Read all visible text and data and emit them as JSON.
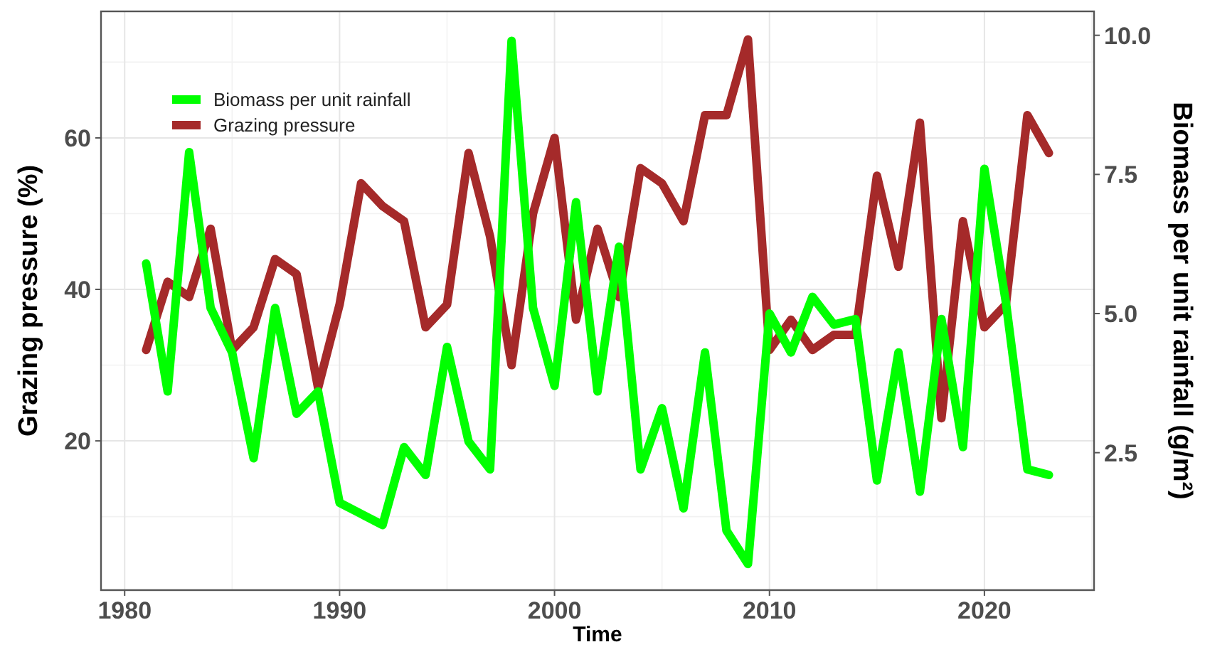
{
  "chart_data": {
    "type": "line",
    "xlabel": "Time",
    "ylabel": "Grazing pressure (%)",
    "y2label": "Biomass per unit rainfall (g/m²)",
    "x": [
      1981,
      1982,
      1983,
      1984,
      1985,
      1986,
      1987,
      1988,
      1989,
      1990,
      1991,
      1992,
      1993,
      1994,
      1995,
      1996,
      1997,
      1998,
      1999,
      2000,
      2001,
      2002,
      2003,
      2004,
      2005,
      2006,
      2007,
      2008,
      2009,
      2010,
      2011,
      2012,
      2013,
      2014,
      2015,
      2016,
      2017,
      2018,
      2019,
      2020,
      2021,
      2022,
      2023
    ],
    "series": [
      {
        "name": "Biomass per unit rainfall",
        "color": "#00ff00",
        "axis": "y2",
        "values": [
          5.9,
          3.6,
          7.9,
          5.1,
          4.3,
          2.4,
          5.1,
          3.2,
          3.6,
          1.6,
          1.4,
          1.2,
          2.6,
          2.1,
          4.4,
          2.7,
          2.2,
          9.9,
          5.1,
          3.7,
          7.0,
          3.6,
          6.2,
          2.2,
          3.3,
          1.5,
          4.3,
          1.1,
          0.5,
          5.0,
          4.3,
          5.3,
          4.8,
          4.9,
          2.0,
          4.3,
          1.8,
          4.9,
          2.6,
          7.6,
          5.2,
          2.2,
          2.1
        ]
      },
      {
        "name": "Grazing pressure",
        "color": "#a52a2a",
        "values": [
          32,
          41,
          39,
          48,
          32,
          35,
          44,
          42,
          27,
          38,
          54,
          51,
          49,
          35,
          38,
          58,
          47,
          30,
          50,
          60,
          36,
          48,
          39,
          56,
          54,
          49,
          63,
          63,
          73,
          32,
          36,
          32,
          34,
          34,
          55,
          43,
          62,
          23,
          49,
          35,
          38,
          63,
          58
        ]
      }
    ],
    "xlim": [
      1978.9,
      2025.1
    ],
    "xticks": [
      1980,
      1990,
      2000,
      2010,
      2020
    ],
    "ylim": [
      0.3,
      76.7
    ],
    "yticks": [
      20,
      40,
      60
    ],
    "y2lim": [
      0.03,
      10.43
    ],
    "y2ticks": [
      {
        "value": 2.5,
        "label": "2.5"
      },
      {
        "value": 5,
        "label": "5.0"
      },
      {
        "value": 7.5,
        "label": "7.5"
      },
      {
        "value": 10,
        "label": "10.0"
      }
    ],
    "grid": true,
    "legend": "top left",
    "marker": "none",
    "line_style": "solid"
  }
}
